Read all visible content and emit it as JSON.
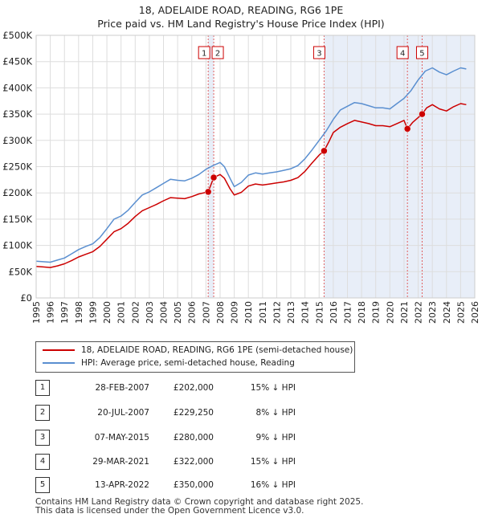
{
  "title": {
    "line1": "18, ADELAIDE ROAD, READING, RG6 1PE",
    "line2": "Price paid vs. HM Land Registry's House Price Index (HPI)"
  },
  "colors": {
    "price_line": "#cc0000",
    "hpi_line": "#5a8fd0",
    "shade": "#e8eef8",
    "marker_line": "#e06060",
    "grid": "#dddddd"
  },
  "chart_data": {
    "type": "line",
    "title": "18, ADELAIDE ROAD, READING, RG6 1PE — Price paid vs. HM Land Registry's House Price Index (HPI)",
    "xlim": [
      1995,
      2026
    ],
    "ylim": [
      0,
      500000
    ],
    "x_ticks": [
      "1995",
      "1996",
      "1997",
      "1998",
      "1999",
      "2000",
      "2001",
      "2002",
      "2003",
      "2004",
      "2005",
      "2006",
      "2007",
      "2008",
      "2009",
      "2010",
      "2011",
      "2012",
      "2013",
      "2014",
      "2015",
      "2016",
      "2017",
      "2018",
      "2019",
      "2020",
      "2021",
      "2022",
      "2023",
      "2024",
      "2025",
      "2026"
    ],
    "y_ticks": [
      {
        "value": 0,
        "label": "£0"
      },
      {
        "value": 50000,
        "label": "£50K"
      },
      {
        "value": 100000,
        "label": "£100K"
      },
      {
        "value": 150000,
        "label": "£150K"
      },
      {
        "value": 200000,
        "label": "£200K"
      },
      {
        "value": 250000,
        "label": "£250K"
      },
      {
        "value": 300000,
        "label": "£300K"
      },
      {
        "value": 350000,
        "label": "£350K"
      },
      {
        "value": 400000,
        "label": "£400K"
      },
      {
        "value": 450000,
        "label": "£450K"
      },
      {
        "value": 500000,
        "label": "£500K"
      }
    ],
    "shaded_ranges": [
      [
        2007.16,
        2007.55
      ],
      [
        2015.35,
        2026.0
      ]
    ],
    "series": [
      {
        "name": "HPI: Average price, semi-detached house, Reading",
        "color": "#5a8fd0",
        "points": [
          [
            1995,
            70000
          ],
          [
            1995.5,
            69000
          ],
          [
            1996,
            68000
          ],
          [
            1996.5,
            72000
          ],
          [
            1997,
            76000
          ],
          [
            1997.5,
            84000
          ],
          [
            1998,
            92000
          ],
          [
            1998.5,
            98000
          ],
          [
            1999,
            103000
          ],
          [
            1999.5,
            115000
          ],
          [
            2000,
            132000
          ],
          [
            2000.5,
            150000
          ],
          [
            2001,
            156000
          ],
          [
            2001.5,
            167000
          ],
          [
            2002,
            182000
          ],
          [
            2002.5,
            196000
          ],
          [
            2003,
            202000
          ],
          [
            2003.5,
            210000
          ],
          [
            2004,
            218000
          ],
          [
            2004.5,
            226000
          ],
          [
            2005,
            224000
          ],
          [
            2005.5,
            223000
          ],
          [
            2006,
            228000
          ],
          [
            2006.5,
            235000
          ],
          [
            2007,
            245000
          ],
          [
            2007.5,
            252000
          ],
          [
            2008,
            258000
          ],
          [
            2008.3,
            250000
          ],
          [
            2008.7,
            228000
          ],
          [
            2009,
            212000
          ],
          [
            2009.5,
            220000
          ],
          [
            2010,
            234000
          ],
          [
            2010.5,
            238000
          ],
          [
            2011,
            236000
          ],
          [
            2011.5,
            238000
          ],
          [
            2012,
            240000
          ],
          [
            2012.5,
            243000
          ],
          [
            2013,
            246000
          ],
          [
            2013.5,
            252000
          ],
          [
            2014,
            265000
          ],
          [
            2014.5,
            282000
          ],
          [
            2015,
            300000
          ],
          [
            2015.5,
            318000
          ],
          [
            2016,
            340000
          ],
          [
            2016.5,
            358000
          ],
          [
            2017,
            365000
          ],
          [
            2017.5,
            372000
          ],
          [
            2018,
            370000
          ],
          [
            2018.5,
            366000
          ],
          [
            2019,
            362000
          ],
          [
            2019.5,
            362000
          ],
          [
            2020,
            360000
          ],
          [
            2020.5,
            370000
          ],
          [
            2021,
            380000
          ],
          [
            2021.5,
            395000
          ],
          [
            2022,
            415000
          ],
          [
            2022.5,
            432000
          ],
          [
            2023,
            438000
          ],
          [
            2023.5,
            430000
          ],
          [
            2024,
            425000
          ],
          [
            2024.5,
            432000
          ],
          [
            2025,
            438000
          ],
          [
            2025.4,
            436000
          ]
        ]
      },
      {
        "name": "18, ADELAIDE ROAD, READING, RG6 1PE (semi-detached house)",
        "color": "#cc0000",
        "points": [
          [
            1995,
            60000
          ],
          [
            1995.5,
            59000
          ],
          [
            1996,
            58000
          ],
          [
            1996.5,
            61000
          ],
          [
            1997,
            65000
          ],
          [
            1997.5,
            71000
          ],
          [
            1998,
            78000
          ],
          [
            1998.5,
            83000
          ],
          [
            1999,
            88000
          ],
          [
            1999.5,
            98000
          ],
          [
            2000,
            112000
          ],
          [
            2000.5,
            126000
          ],
          [
            2001,
            132000
          ],
          [
            2001.5,
            142000
          ],
          [
            2002,
            155000
          ],
          [
            2002.5,
            166000
          ],
          [
            2003,
            172000
          ],
          [
            2003.5,
            178000
          ],
          [
            2004,
            185000
          ],
          [
            2004.5,
            191000
          ],
          [
            2005,
            190000
          ],
          [
            2005.5,
            189000
          ],
          [
            2006,
            193000
          ],
          [
            2006.5,
            198000
          ],
          [
            2007.16,
            202000
          ],
          [
            2007.55,
            229250
          ],
          [
            2008,
            235000
          ],
          [
            2008.3,
            228000
          ],
          [
            2008.7,
            208000
          ],
          [
            2009,
            196000
          ],
          [
            2009.5,
            201000
          ],
          [
            2010,
            213000
          ],
          [
            2010.5,
            217000
          ],
          [
            2011,
            215000
          ],
          [
            2011.5,
            217000
          ],
          [
            2012,
            219000
          ],
          [
            2012.5,
            221000
          ],
          [
            2013,
            224000
          ],
          [
            2013.5,
            229000
          ],
          [
            2014,
            241000
          ],
          [
            2014.5,
            257000
          ],
          [
            2015,
            272000
          ],
          [
            2015.35,
            280000
          ],
          [
            2015.7,
            298000
          ],
          [
            2016,
            315000
          ],
          [
            2016.5,
            325000
          ],
          [
            2017,
            332000
          ],
          [
            2017.5,
            338000
          ],
          [
            2018,
            335000
          ],
          [
            2018.5,
            332000
          ],
          [
            2019,
            328000
          ],
          [
            2019.5,
            328000
          ],
          [
            2020,
            326000
          ],
          [
            2020.5,
            332000
          ],
          [
            2021,
            338000
          ],
          [
            2021.24,
            322000
          ],
          [
            2021.6,
            334000
          ],
          [
            2022.28,
            350000
          ],
          [
            2022.6,
            362000
          ],
          [
            2023,
            368000
          ],
          [
            2023.5,
            360000
          ],
          [
            2024,
            356000
          ],
          [
            2024.5,
            364000
          ],
          [
            2025,
            370000
          ],
          [
            2025.4,
            368000
          ]
        ]
      }
    ],
    "sales": [
      {
        "id": "1",
        "x": 2007.16,
        "price": 202000
      },
      {
        "id": "2",
        "x": 2007.55,
        "price": 229250
      },
      {
        "id": "3",
        "x": 2015.35,
        "price": 280000
      },
      {
        "id": "4",
        "x": 2021.24,
        "price": 322000
      },
      {
        "id": "5",
        "x": 2022.28,
        "price": 350000
      }
    ]
  },
  "legend": {
    "price_label": "18, ADELAIDE ROAD, READING, RG6 1PE (semi-detached house)",
    "hpi_label": "HPI: Average price, semi-detached house, Reading"
  },
  "transactions": [
    {
      "num": "1",
      "date": "28-FEB-2007",
      "price": "£202,000",
      "hpi": "15% ↓ HPI"
    },
    {
      "num": "2",
      "date": "20-JUL-2007",
      "price": "£229,250",
      "hpi": "8% ↓ HPI"
    },
    {
      "num": "3",
      "date": "07-MAY-2015",
      "price": "£280,000",
      "hpi": "9% ↓ HPI"
    },
    {
      "num": "4",
      "date": "29-MAR-2021",
      "price": "£322,000",
      "hpi": "15% ↓ HPI"
    },
    {
      "num": "5",
      "date": "13-APR-2022",
      "price": "£350,000",
      "hpi": "16% ↓ HPI"
    }
  ],
  "footer": {
    "line1": "Contains HM Land Registry data © Crown copyright and database right 2025.",
    "line2": "This data is licensed under the Open Government Licence v3.0."
  }
}
